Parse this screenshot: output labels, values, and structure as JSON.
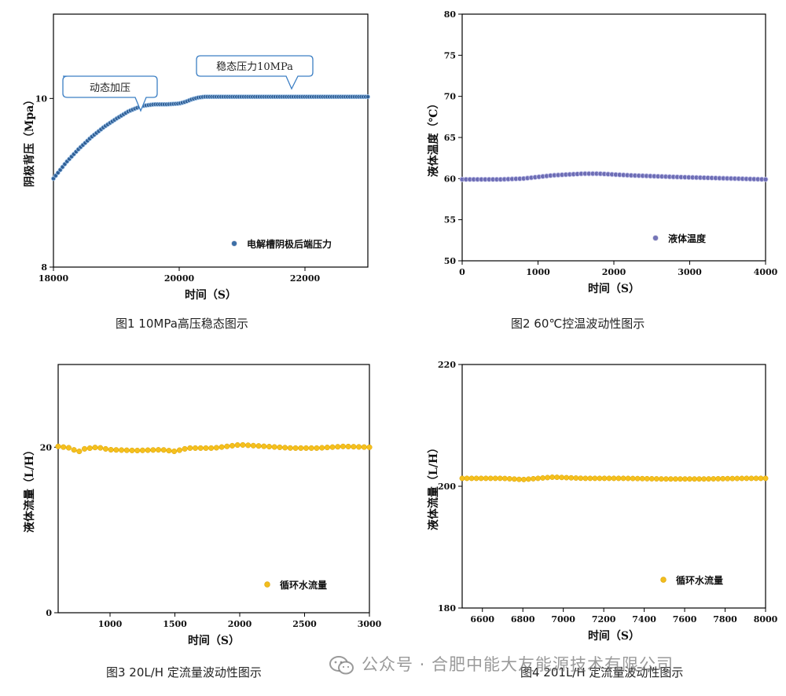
{
  "chart_data": [
    {
      "type": "scatter",
      "ylabel": "阴极背压（Mpa）",
      "xlabel": "时间（S）",
      "xlim": [
        18000,
        23000
      ],
      "ylim": [
        8,
        11
      ],
      "x_ticks": [
        "18000",
        "20000",
        "22000"
      ],
      "y_ticks": [
        "8",
        "10"
      ],
      "series": [
        {
          "name": "电解槽阴极后端压力",
          "color": "#3c6fa6",
          "x": [
            18000,
            18200,
            18400,
            18600,
            18800,
            19000,
            19200,
            19400,
            19600,
            19800,
            20000,
            20100,
            20200,
            20300,
            20400,
            20600,
            20800,
            21000,
            21500,
            22000,
            22500,
            23000
          ],
          "y": [
            9.05,
            9.24,
            9.4,
            9.54,
            9.66,
            9.76,
            9.85,
            9.91,
            9.93,
            9.93,
            9.94,
            9.96,
            9.99,
            10.01,
            10.02,
            10.02,
            10.02,
            10.02,
            10.02,
            10.02,
            10.02,
            10.02
          ]
        }
      ],
      "legend_position": "bottom-right",
      "annotations": [
        "动态加压",
        "稳态压力10MPa"
      ]
    },
    {
      "type": "scatter",
      "ylabel": "液体温度（℃）",
      "xlabel": "时间（S）",
      "xlim": [
        0,
        4000
      ],
      "ylim": [
        50,
        80
      ],
      "x_ticks": [
        "0",
        "1000",
        "2000",
        "3000",
        "4000"
      ],
      "y_ticks": [
        "50",
        "55",
        "60",
        "65",
        "70",
        "75",
        "80"
      ],
      "series": [
        {
          "name": "液体温度",
          "color": "#7575b8",
          "x": [
            0,
            500,
            800,
            1000,
            1200,
            1400,
            1600,
            1800,
            2000,
            2200,
            2500,
            2800,
            3200,
            3600,
            4000
          ],
          "y": [
            59.9,
            59.9,
            60.0,
            60.2,
            60.4,
            60.5,
            60.6,
            60.6,
            60.5,
            60.4,
            60.3,
            60.2,
            60.1,
            60.0,
            59.9
          ]
        }
      ],
      "legend_position": "bottom-right"
    },
    {
      "type": "scatter",
      "ylabel": "液体流量（L/H）",
      "xlabel": "时间（S）",
      "xlim": [
        600,
        3000
      ],
      "ylim": [
        0,
        30
      ],
      "x_ticks": [
        "1000",
        "1500",
        "2000",
        "2500",
        "3000"
      ],
      "y_ticks": [
        "0",
        "20"
      ],
      "series": [
        {
          "name": "循环水流量",
          "color": "#f2bd1d",
          "x": [
            600,
            700,
            750,
            800,
            900,
            1000,
            1200,
            1400,
            1500,
            1600,
            1800,
            2000,
            2200,
            2400,
            2600,
            2800,
            3000
          ],
          "y": [
            20.1,
            19.9,
            19.4,
            19.8,
            20.0,
            19.7,
            19.6,
            19.7,
            19.5,
            19.9,
            19.9,
            20.3,
            20.1,
            19.9,
            19.9,
            20.1,
            20.0
          ]
        }
      ],
      "legend_position": "bottom-right"
    },
    {
      "type": "scatter",
      "ylabel": "液体流量（L/H）",
      "xlabel": "时间（S）",
      "xlim": [
        6500,
        8000
      ],
      "ylim": [
        180,
        220
      ],
      "x_ticks": [
        "6600",
        "6800",
        "7000",
        "7200",
        "7400",
        "7600",
        "7800",
        "8000"
      ],
      "y_ticks": [
        "180",
        "200",
        "220"
      ],
      "series": [
        {
          "name": "循环水流量",
          "color": "#f2bd1d",
          "x": [
            6500,
            6700,
            6800,
            6950,
            7100,
            7300,
            7500,
            7700,
            7900,
            8000
          ],
          "y": [
            201.3,
            201.3,
            201.1,
            201.5,
            201.3,
            201.3,
            201.2,
            201.2,
            201.3,
            201.3
          ]
        }
      ],
      "legend_position": "bottom-right"
    }
  ],
  "captions": [
    "图1 10MPa高压稳态图示",
    "图2 60℃控温波动性图示",
    "图3 20L/H 定流量波动性图示",
    "图4 201L/H 定流量波动性图示"
  ],
  "watermark": "公众号 · 合肥中能大友能源技术有限公司"
}
